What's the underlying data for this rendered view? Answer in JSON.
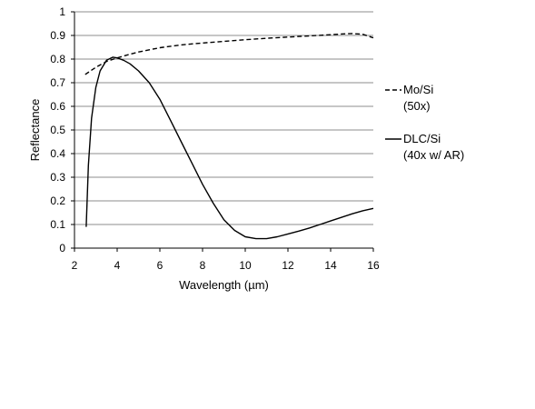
{
  "chart_data": {
    "type": "line",
    "xlabel": "Wavelength (µm)",
    "ylabel": "Reflectance",
    "xlim": [
      2,
      16
    ],
    "ylim": [
      0,
      1
    ],
    "x_ticks": [
      "2",
      "4",
      "6",
      "8",
      "10",
      "12",
      "14",
      "16"
    ],
    "y_ticks": [
      "0",
      "0.1",
      "0.2",
      "0.3",
      "0.4",
      "0.5",
      "0.6",
      "0.7",
      "0.8",
      "0.9",
      "1"
    ],
    "grid": "horizontal",
    "legend_position": "right",
    "series": [
      {
        "name_line1": "Mo/Si",
        "name_line2": "(50x)",
        "style": "dashed",
        "color": "#000000",
        "x": [
          2.5,
          3,
          3.5,
          4,
          4.5,
          5,
          6,
          7,
          8,
          9,
          10,
          11,
          12,
          13,
          14,
          14.5,
          15,
          15.5,
          16
        ],
        "y": [
          0.735,
          0.765,
          0.79,
          0.805,
          0.818,
          0.83,
          0.848,
          0.86,
          0.868,
          0.875,
          0.882,
          0.888,
          0.893,
          0.898,
          0.903,
          0.906,
          0.908,
          0.905,
          0.89
        ]
      },
      {
        "name_line1": "DLC/Si",
        "name_line2": "(40x w/ AR)",
        "style": "solid",
        "color": "#000000",
        "x": [
          2.55,
          2.65,
          2.8,
          3.0,
          3.2,
          3.5,
          3.8,
          4.0,
          4.3,
          4.6,
          5.0,
          5.5,
          6.0,
          6.5,
          7.0,
          7.5,
          8.0,
          8.5,
          9.0,
          9.5,
          10.0,
          10.5,
          11.0,
          11.5,
          12.0,
          12.5,
          13.0,
          13.5,
          14.0,
          14.5,
          15.0,
          15.5,
          16.0
        ],
        "y": [
          0.09,
          0.35,
          0.55,
          0.68,
          0.75,
          0.795,
          0.808,
          0.805,
          0.795,
          0.78,
          0.75,
          0.7,
          0.63,
          0.54,
          0.45,
          0.36,
          0.27,
          0.19,
          0.12,
          0.075,
          0.048,
          0.04,
          0.04,
          0.048,
          0.06,
          0.072,
          0.085,
          0.1,
          0.115,
          0.13,
          0.145,
          0.158,
          0.168
        ]
      }
    ]
  }
}
